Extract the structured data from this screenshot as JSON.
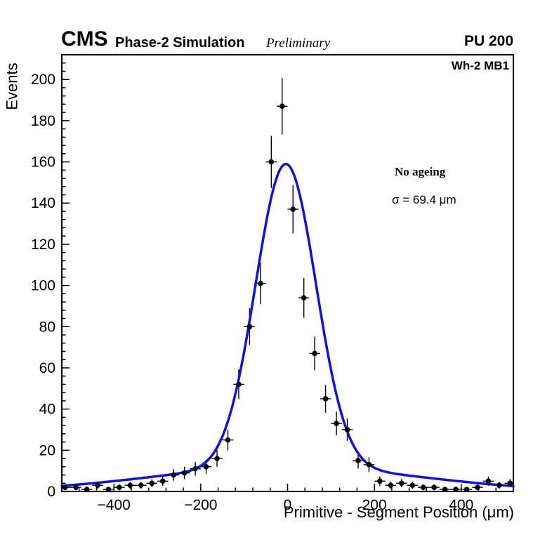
{
  "header": {
    "experiment": "CMS",
    "subtitle": "Phase-2 Simulation",
    "preliminary": "Preliminary",
    "pileup": "PU 200"
  },
  "plot_label": "Wh-2 MB1",
  "annotation": {
    "scenario": "No ageing",
    "sigma": "σ = 69.4 μm"
  },
  "chart_data": {
    "type": "scatter",
    "title": "",
    "xlabel": "Primitive - Segment Position (μm)",
    "ylabel": "Events",
    "xlim": [
      -520,
      520
    ],
    "ylim": [
      0,
      212
    ],
    "grid": false,
    "legend": "none",
    "x_major_ticks": [
      -400,
      -200,
      0,
      200,
      400
    ],
    "x_tick_labels": [
      "−400",
      "−200",
      "0",
      "200",
      "400"
    ],
    "x_minor_step": 40,
    "y_major_ticks": [
      0,
      20,
      40,
      60,
      80,
      100,
      120,
      140,
      160,
      180,
      200
    ],
    "y_tick_labels": [
      "0",
      "20",
      "40",
      "60",
      "80",
      "100",
      "120",
      "140",
      "160",
      "180",
      "200"
    ],
    "y_minor_step": 4,
    "bin_half_width": 12.5,
    "marker_color": "#000000",
    "error_mode": "sqrt",
    "points": [
      [
        -512.5,
        2
      ],
      [
        -487.5,
        2
      ],
      [
        -462.5,
        1
      ],
      [
        -437.5,
        3
      ],
      [
        -412.5,
        1
      ],
      [
        -387.5,
        2
      ],
      [
        -362.5,
        3
      ],
      [
        -337.5,
        3
      ],
      [
        -312.5,
        4
      ],
      [
        -287.5,
        5
      ],
      [
        -262.5,
        8
      ],
      [
        -237.5,
        9
      ],
      [
        -212.5,
        11
      ],
      [
        -187.5,
        12
      ],
      [
        -162.5,
        16
      ],
      [
        -137.5,
        25
      ],
      [
        -112.5,
        52
      ],
      [
        -87.5,
        80
      ],
      [
        -62.5,
        101
      ],
      [
        -37.5,
        160
      ],
      [
        -12.5,
        187
      ],
      [
        12.5,
        137
      ],
      [
        37.5,
        94
      ],
      [
        62.5,
        67
      ],
      [
        87.5,
        45
      ],
      [
        112.5,
        33
      ],
      [
        137.5,
        30
      ],
      [
        162.5,
        15
      ],
      [
        187.5,
        13
      ],
      [
        212.5,
        5
      ],
      [
        237.5,
        3
      ],
      [
        262.5,
        4
      ],
      [
        287.5,
        3
      ],
      [
        312.5,
        2
      ],
      [
        337.5,
        2
      ],
      [
        362.5,
        1
      ],
      [
        387.5,
        1
      ],
      [
        412.5,
        1
      ],
      [
        437.5,
        2
      ],
      [
        462.5,
        5
      ],
      [
        487.5,
        3
      ],
      [
        512.5,
        4
      ]
    ],
    "fit": {
      "shape": "gaussian_core_plus_wide_tail",
      "color": "#1111dd",
      "amplitude": 147,
      "mean": -4,
      "sigma": 69.4,
      "tail_amplitude": 12,
      "tail_sigma": 300
    }
  }
}
